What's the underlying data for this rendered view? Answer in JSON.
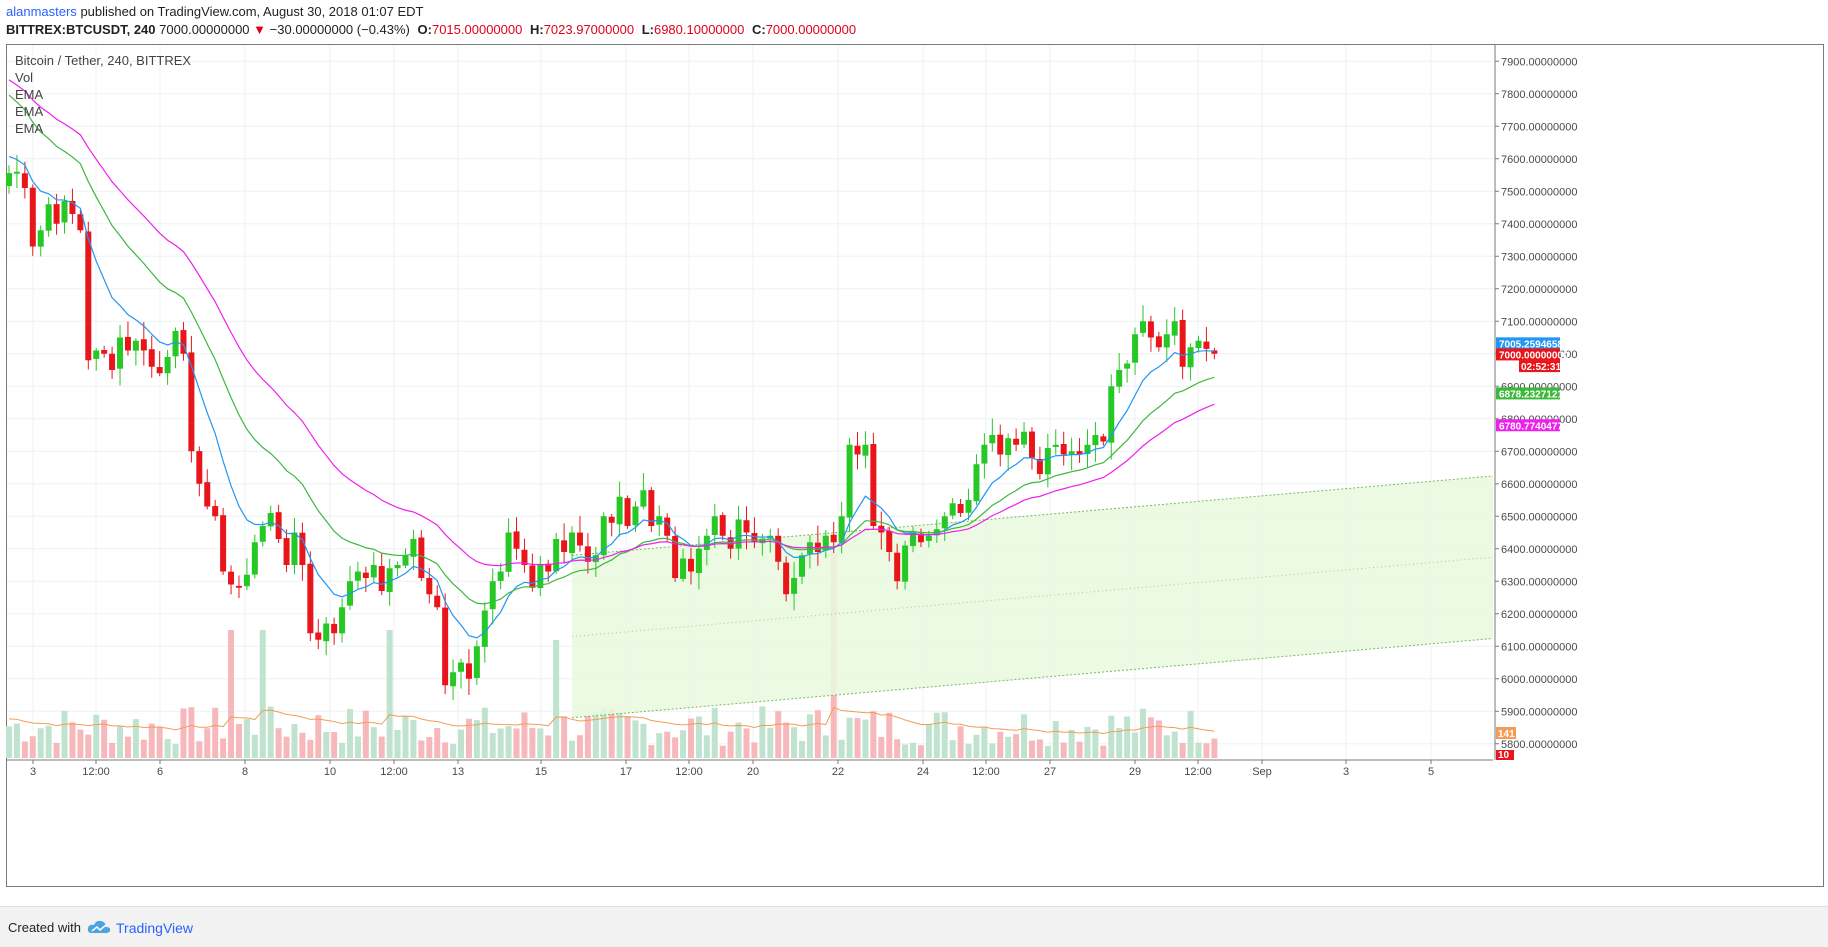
{
  "header": {
    "author": "alanmasters",
    "published": "published on TradingView.com, August 30, 2018 01:07 EDT",
    "symbol": "BITTREX:BTCUSDT, 240",
    "last": "7000.00000000",
    "change": "−30.00000000 (−0.43%)",
    "o_label": "O:",
    "o_value": "7015.00000000",
    "h_label": "H:",
    "h_value": "7023.97000000",
    "l_label": "L:",
    "l_value": "6980.10000000",
    "c_label": "C:",
    "c_value": "7000.00000000"
  },
  "legend": {
    "title": "Bitcoin / Tether, 240, BITTREX",
    "items": [
      "Vol",
      "EMA",
      "EMA",
      "EMA"
    ]
  },
  "footer": {
    "created": "Created with",
    "brand": "TradingView"
  },
  "colors": {
    "up": "#26c826",
    "down": "#e8151b",
    "ema_fast": "#2196f3",
    "ema_mid": "#3cb93c",
    "ema_slow": "#ee20ee",
    "vol_ma": "#f39c55",
    "vol_up": "#bfe3cf",
    "vol_down": "#f7b8bc",
    "channel_fill": "#e9f9df",
    "channel_line": "#6cb24c"
  },
  "chart_data": {
    "type": "candlestick",
    "title": "Bitcoin / Tether, 240, BITTREX",
    "timeframe_hours": 4,
    "ylim": [
      5750,
      7950
    ],
    "y_ticks": [
      5800,
      5900,
      6000,
      6100,
      6200,
      6300,
      6400,
      6500,
      6600,
      6700,
      6800,
      6900,
      7000,
      7100,
      7200,
      7300,
      7400,
      7500,
      7600,
      7700,
      7800,
      7900
    ],
    "x_ticks": [
      "3",
      "12:00",
      "6",
      "8",
      "10",
      "12:00",
      "13",
      "15",
      "17",
      "12:00",
      "20",
      "22",
      "24",
      "12:00",
      "27",
      "29",
      "12:00",
      "Sep",
      "3",
      "5"
    ],
    "candles_close": [
      7556,
      7560,
      7510,
      7330,
      7380,
      7460,
      7400,
      7470,
      7430,
      7380,
      6980,
      7010,
      7000,
      6950,
      7050,
      7010,
      7040,
      7010,
      6960,
      6940,
      6990,
      7070,
      7000,
      6700,
      6600,
      6530,
      6500,
      6330,
      6290,
      6280,
      6320,
      6420,
      6470,
      6510,
      6430,
      6350,
      6450,
      6350,
      6140,
      6120,
      6170,
      6140,
      6220,
      6300,
      6330,
      6310,
      6350,
      6270,
      6340,
      6350,
      6380,
      6430,
      6310,
      6260,
      6220,
      5980,
      6020,
      6050,
      6000,
      6100,
      6210,
      6300,
      6330,
      6450,
      6400,
      6350,
      6280,
      6350,
      6330,
      6430,
      6390,
      6450,
      6410,
      6360,
      6380,
      6500,
      6480,
      6560,
      6470,
      6530,
      6580,
      6470,
      6500,
      6440,
      6310,
      6370,
      6330,
      6400,
      6440,
      6500,
      6440,
      6400,
      6490,
      6450,
      6420,
      6430,
      6440,
      6360,
      6260,
      6310,
      6380,
      6420,
      6390,
      6440,
      6420,
      6500,
      6720,
      6690,
      6720,
      6470,
      6450,
      6390,
      6300,
      6410,
      6450,
      6420,
      6440,
      6460,
      6500,
      6540,
      6510,
      6550,
      6660,
      6720,
      6750,
      6690,
      6740,
      6720,
      6760,
      6680,
      6630,
      6710,
      6720,
      6690,
      6700,
      6690,
      6720,
      6750,
      6730,
      6900,
      6950,
      6970,
      7060,
      7100,
      7050,
      7020,
      7060,
      7100,
      6960,
      7020,
      7040,
      7015,
      7000
    ],
    "last_price": 7000,
    "current_price_tag": "7000.00000000",
    "countdown": "02:52:31",
    "ema_fast_last": "7005.25946580",
    "ema_mid_last": "6878.23271218",
    "ema_slow_last": "6780.77404771",
    "volume_tag": "141",
    "volume_tag2": "10",
    "channel": {
      "start_index": 71,
      "end_index_extended": 222,
      "start_lower": 5880,
      "slope_per_bar": 2.1,
      "width": 500
    }
  }
}
